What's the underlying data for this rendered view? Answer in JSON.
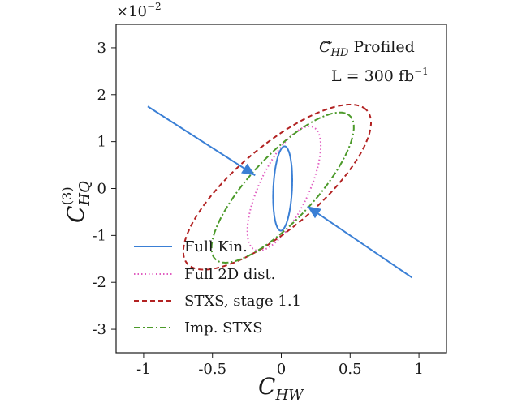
{
  "chart_data": {
    "type": "line",
    "title": "",
    "xlabel": "C",
    "xlabel_sub": "HW",
    "ylabel": "C",
    "ylabel_sub": "HQ",
    "ylabel_sup": "(3)",
    "y_multiplier": "×10",
    "y_multiplier_exp": "−2",
    "xlim": [
      -1.2,
      1.2
    ],
    "ylim": [
      -3.5,
      3.5
    ],
    "xticks": [
      -1,
      -0.5,
      0,
      0.5,
      1
    ],
    "xtick_labels": [
      "-1",
      "-0.5",
      "0",
      "0.5",
      "1"
    ],
    "yticks": [
      3,
      2,
      1,
      0,
      -1,
      -2,
      -3
    ],
    "ytick_labels": [
      "3",
      "2",
      "1",
      "0",
      "-1",
      "-2",
      "-3"
    ],
    "grid": false,
    "legend_position": "bottom-left",
    "annotation": {
      "line1_symbol": "C",
      "line1_sub": "HD",
      "line1_text": "Profiled",
      "line2_prefix": "L = 300 fb",
      "line2_exp": "−1"
    },
    "series": [
      {
        "name": "Full Kin.",
        "color": "#3a7fd5",
        "style": "solid",
        "center": [
          0.01,
          0.0
        ],
        "semi_major": 1.0,
        "semi_minor": 0.17,
        "angle_deg": -88
      },
      {
        "name": "Full 2D dist.",
        "color": "#e05cc0",
        "style": "dotted",
        "center": [
          0.02,
          0.0
        ],
        "semi_major": 1.55,
        "semi_minor": 0.46,
        "angle_deg": -71
      },
      {
        "name": "STXS, stage 1.1",
        "color": "#b22222",
        "style": "dashed",
        "center": [
          -0.03,
          0.03
        ],
        "semi_major": 2.45,
        "semi_minor": 0.85,
        "angle_deg": -50
      },
      {
        "name": "Imp. STXS",
        "color": "#4c9a2a",
        "style": "dashdot",
        "center": [
          0.01,
          0.02
        ],
        "semi_major": 2.1,
        "semi_minor": 0.65,
        "angle_deg": -56
      }
    ],
    "arrows": [
      {
        "from": [
          -0.97,
          1.75
        ],
        "to": [
          -0.19,
          0.28
        ],
        "color": "#3a7fd5"
      },
      {
        "from": [
          0.95,
          -1.9
        ],
        "to": [
          0.19,
          -0.38
        ],
        "color": "#3a7fd5"
      }
    ]
  }
}
